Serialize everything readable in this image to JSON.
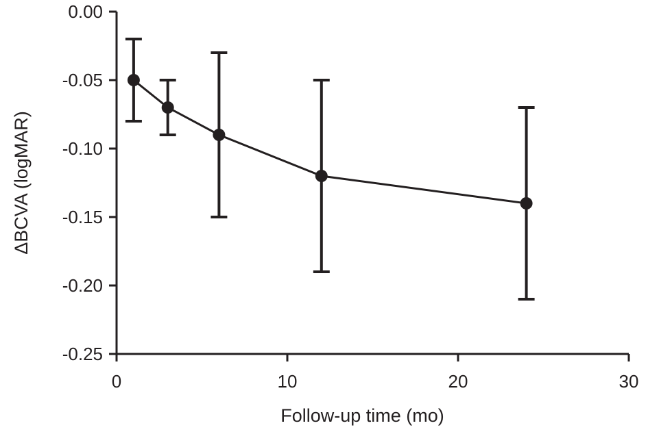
{
  "chart_data": {
    "type": "line",
    "title": "",
    "xlabel": "Follow-up time (mo)",
    "ylabel": "ΔBCVA (logMAR)",
    "xlim": [
      0,
      30
    ],
    "ylim": [
      -0.25,
      0.0
    ],
    "x_ticks": [
      0,
      10,
      20,
      30
    ],
    "x_tick_labels": [
      "0",
      "10",
      "20",
      "30"
    ],
    "y_ticks": [
      0.0,
      -0.05,
      -0.1,
      -0.15,
      -0.2,
      -0.25
    ],
    "y_tick_labels": [
      "0.00",
      "-0.05",
      "-0.10",
      "-0.15",
      "-0.20",
      "-0.25"
    ],
    "grid": false,
    "legend": "none",
    "series": [
      {
        "x": [
          1,
          3,
          6,
          12,
          24
        ],
        "y": [
          -0.05,
          -0.07,
          -0.09,
          -0.12,
          -0.14
        ],
        "error_low": [
          -0.08,
          -0.09,
          -0.15,
          -0.19,
          -0.21
        ],
        "error_high": [
          -0.02,
          -0.05,
          -0.03,
          -0.05,
          -0.07
        ],
        "color": "#231f20"
      }
    ]
  }
}
